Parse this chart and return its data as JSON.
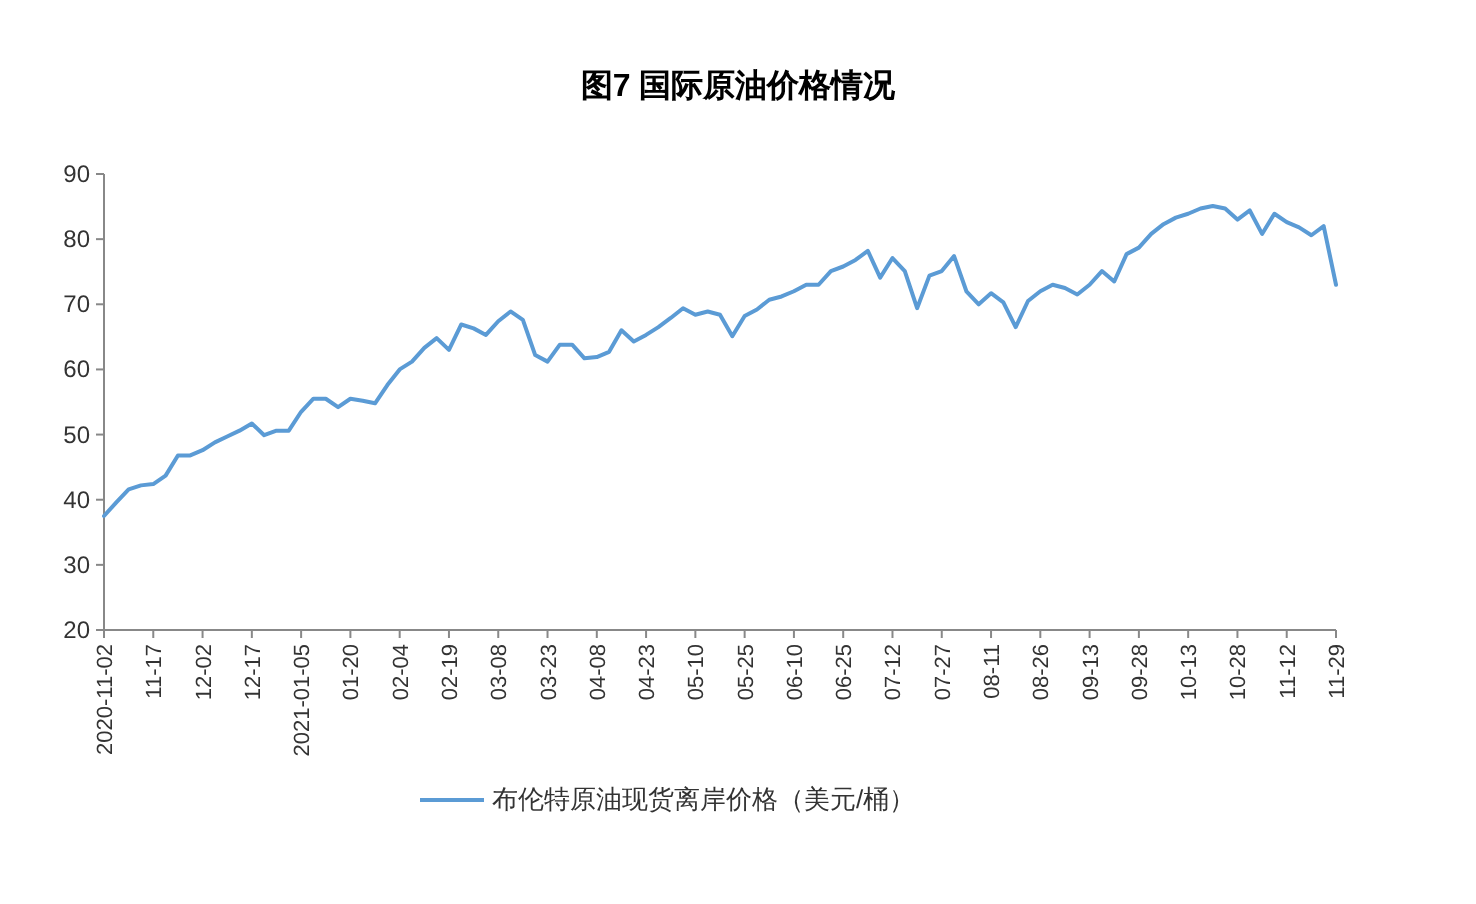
{
  "chart_data": {
    "type": "line",
    "title": "图7  国际原油价格情况",
    "categories": [
      "2020-11-02",
      null,
      null,
      null,
      "11-17",
      null,
      null,
      null,
      "12-02",
      null,
      null,
      null,
      "12-17",
      null,
      null,
      null,
      "2021-01-05",
      null,
      null,
      null,
      "01-20",
      null,
      null,
      null,
      "02-04",
      null,
      null,
      null,
      "02-19",
      null,
      null,
      null,
      "03-08",
      null,
      null,
      null,
      "03-23",
      null,
      null,
      null,
      "04-08",
      null,
      null,
      null,
      "04-23",
      null,
      null,
      null,
      "05-10",
      null,
      null,
      null,
      "05-25",
      null,
      null,
      null,
      "06-10",
      null,
      null,
      null,
      "06-25",
      null,
      null,
      null,
      "07-12",
      null,
      null,
      null,
      "07-27",
      null,
      null,
      null,
      "08-11",
      null,
      null,
      null,
      "08-26",
      null,
      null,
      null,
      "09-13",
      null,
      null,
      null,
      "09-28",
      null,
      null,
      null,
      "10-13",
      null,
      null,
      null,
      "10-28",
      null,
      null,
      null,
      "11-12",
      null,
      null,
      null,
      "11-29"
    ],
    "series": [
      {
        "name": "布伦特原油现货离岸价格（美元/桶）",
        "color": "#5b9bd5",
        "values": [
          37.5,
          39.6,
          41.6,
          42.2,
          42.4,
          43.7,
          46.8,
          46.8,
          47.6,
          48.8,
          49.7,
          50.6,
          51.7,
          49.9,
          50.6,
          50.6,
          53.5,
          55.5,
          55.5,
          54.2,
          55.5,
          55.2,
          54.8,
          57.6,
          60.0,
          61.2,
          63.3,
          64.8,
          63.0,
          66.9,
          66.3,
          65.3,
          67.4,
          68.9,
          67.6,
          62.2,
          61.2,
          63.8,
          63.8,
          61.7,
          61.9,
          62.7,
          66.0,
          64.3,
          65.3,
          66.5,
          67.9,
          69.4,
          68.4,
          68.9,
          68.4,
          65.1,
          68.2,
          69.2,
          70.7,
          71.2,
          72.0,
          73.0,
          73.0,
          75.1,
          75.8,
          76.8,
          78.2,
          74.1,
          77.1,
          75.1,
          69.4,
          74.4,
          75.1,
          77.4,
          72.0,
          70.0,
          71.7,
          70.3,
          66.5,
          70.5,
          72.0,
          73.0,
          72.5,
          71.5,
          73.0,
          75.1,
          73.5,
          77.7,
          78.7,
          80.8,
          82.3,
          83.3,
          83.9,
          84.7,
          85.1,
          84.7,
          83.0,
          84.4,
          80.8,
          83.9,
          82.6,
          81.8,
          80.6,
          82.0,
          73.0
        ]
      }
    ],
    "ylim": [
      20,
      90
    ],
    "yticks": [
      20,
      30,
      40,
      50,
      60,
      70,
      80,
      90
    ],
    "legend": "bottom"
  }
}
